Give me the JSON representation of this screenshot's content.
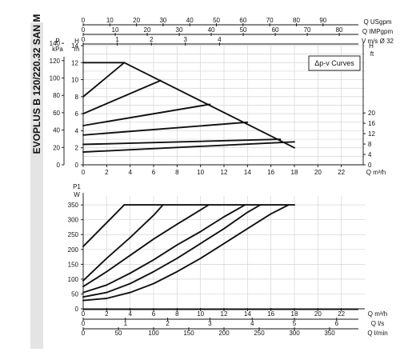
{
  "title": "EVOPLUS B 120/220.32 SAN M",
  "legend": "Δp-v Curves",
  "chart_data": [
    {
      "type": "line",
      "name": "head",
      "x_unit": "Q m³/h",
      "xlim": [
        0,
        24
      ],
      "x_ticks": [
        0,
        2,
        4,
        6,
        8,
        10,
        12,
        14,
        16,
        18,
        20,
        22
      ],
      "left_axes": [
        {
          "unit_top": "P",
          "unit": "kPa",
          "ticks": [
            0,
            20,
            40,
            60,
            80,
            100,
            120,
            140
          ]
        },
        {
          "unit_top": "H",
          "unit": "m",
          "ticks": [
            0,
            2,
            4,
            6,
            8,
            10,
            12,
            14
          ]
        }
      ],
      "right_axis": {
        "unit_top": "H",
        "unit": "ft",
        "ticks": [
          0,
          4,
          8,
          12,
          16,
          20
        ]
      },
      "top_axes": [
        {
          "unit": "Q USgpm",
          "ticks": [
            0,
            10,
            20,
            30,
            40,
            50,
            60,
            70,
            80,
            90
          ]
        },
        {
          "unit": "Q IMPgpm",
          "ticks": [
            0,
            10,
            20,
            30,
            40,
            50,
            60,
            70,
            80
          ]
        },
        {
          "unit": "V m/s Ø 32",
          "ticks": [
            0,
            1,
            2,
            3,
            4
          ]
        }
      ],
      "ylim": [
        0,
        14
      ],
      "max_line": {
        "x": [
          0,
          3.5,
          18.0
        ],
        "y": [
          12.0,
          12.0,
          2.0
        ]
      },
      "series": [
        {
          "x": [
            0,
            18.0
          ],
          "y": [
            1.5,
            2.7
          ]
        },
        {
          "x": [
            0,
            16.8
          ],
          "y": [
            2.4,
            3.0
          ]
        },
        {
          "x": [
            0,
            14.0
          ],
          "y": [
            3.5,
            5.0
          ]
        },
        {
          "x": [
            0,
            10.8
          ],
          "y": [
            4.6,
            7.1
          ]
        },
        {
          "x": [
            0,
            6.6
          ],
          "y": [
            6.0,
            9.9
          ]
        },
        {
          "x": [
            0,
            3.5
          ],
          "y": [
            8.0,
            12.0
          ]
        }
      ]
    },
    {
      "type": "line",
      "name": "power",
      "y_unit_top": "P1",
      "y_unit": "W",
      "ylim": [
        0,
        380
      ],
      "y_ticks": [
        0,
        50,
        100,
        150,
        200,
        250,
        300,
        350
      ],
      "xlim": [
        0,
        24
      ],
      "x_ticks": [
        0,
        2,
        4,
        6,
        8,
        10,
        12,
        14,
        16,
        18,
        20,
        22
      ],
      "bottom_axes": [
        {
          "unit": "Q m³/h",
          "ticks": [
            0,
            2,
            4,
            6,
            8,
            10,
            12,
            14,
            16,
            18,
            20,
            22
          ]
        },
        {
          "unit": "Q l/s",
          "ticks": [
            0,
            1,
            2,
            3,
            4,
            5,
            6
          ]
        },
        {
          "unit": "Q l/min",
          "ticks": [
            0,
            50,
            100,
            150,
            200,
            250,
            300,
            350
          ]
        }
      ],
      "max_line": {
        "x": [
          3.5,
          18.0
        ],
        "y": [
          350,
          350
        ]
      },
      "series": [
        {
          "x": [
            0,
            2,
            4,
            6,
            8,
            10,
            12,
            14,
            16,
            17.5
          ],
          "y": [
            28,
            35,
            55,
            85,
            125,
            170,
            220,
            270,
            320,
            350
          ]
        },
        {
          "x": [
            0,
            2,
            4,
            6,
            8,
            10,
            12,
            14,
            15.1
          ],
          "y": [
            40,
            55,
            85,
            125,
            170,
            220,
            270,
            325,
            350
          ]
        },
        {
          "x": [
            0,
            2,
            4,
            6,
            8,
            10,
            12,
            13.8
          ],
          "y": [
            55,
            80,
            120,
            165,
            215,
            260,
            310,
            350
          ]
        },
        {
          "x": [
            0,
            2,
            4,
            6,
            8,
            10.7
          ],
          "y": [
            75,
            125,
            180,
            235,
            285,
            350
          ]
        },
        {
          "x": [
            0,
            2,
            4,
            6,
            6.8
          ],
          "y": [
            95,
            170,
            240,
            315,
            350
          ]
        },
        {
          "x": [
            0,
            1,
            2,
            3,
            3.5
          ],
          "y": [
            210,
            250,
            290,
            330,
            350
          ]
        }
      ]
    }
  ]
}
